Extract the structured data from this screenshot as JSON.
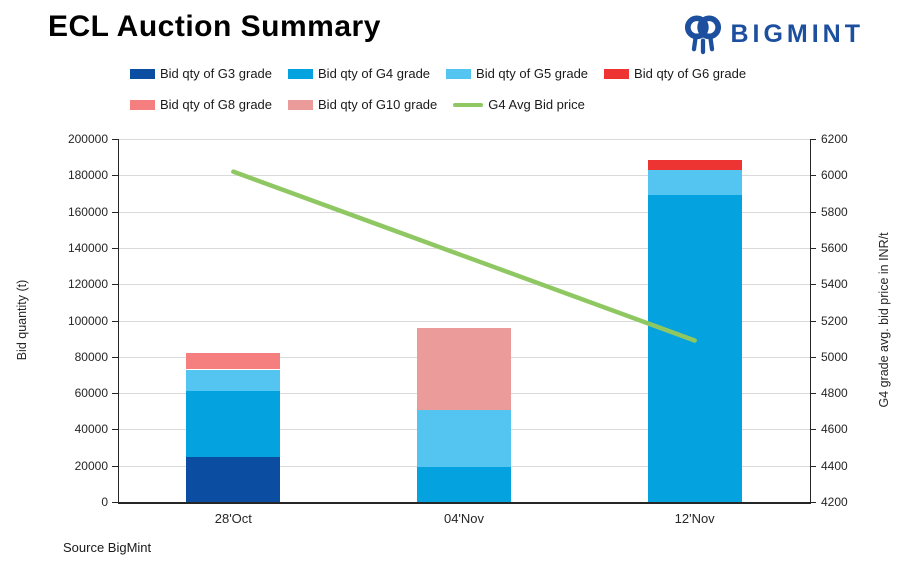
{
  "header": {
    "title": "ECL Auction Summary",
    "brand": "BIGMINT",
    "brand_color": "#1d4f9f"
  },
  "source_note": "Source BigMint",
  "chart_data": {
    "type": "bar",
    "stacked": true,
    "legend_position": "top",
    "grid": true,
    "categories": [
      "28'Oct",
      "04'Nov",
      "12'Nov"
    ],
    "series": [
      {
        "name": "Bid qty of G3 grade",
        "color": "#0b4da0",
        "values": [
          25000,
          0,
          0
        ]
      },
      {
        "name": "Bid qty of G4 grade",
        "color": "#05a2e0",
        "values": [
          36000,
          19500,
          169000
        ]
      },
      {
        "name": "Bid qty of G5 grade",
        "color": "#54c5f0",
        "values": [
          12000,
          31000,
          14000
        ]
      },
      {
        "name": "Bid qty of G6 grade",
        "color": "#ee3432",
        "values": [
          0,
          0,
          5500
        ]
      },
      {
        "name": "Bid qty of G8 grade",
        "color": "#f57f7f",
        "values": [
          9000,
          0,
          0
        ]
      },
      {
        "name": "Bid qty of G10 grade",
        "color": "#ec9b9b",
        "values": [
          0,
          45500,
          0
        ]
      }
    ],
    "line_series": {
      "name": "G4 Avg Bid price",
      "color": "#8fc862",
      "values": [
        6020,
        5555,
        5090
      ]
    },
    "left_axis": {
      "label": "Bid quantity (t)",
      "min": 0,
      "max": 200000,
      "step": 20000
    },
    "right_axis": {
      "label": "G4 grade avg. bid price in INR/t",
      "min": 4200,
      "max": 6200,
      "step": 200
    }
  }
}
